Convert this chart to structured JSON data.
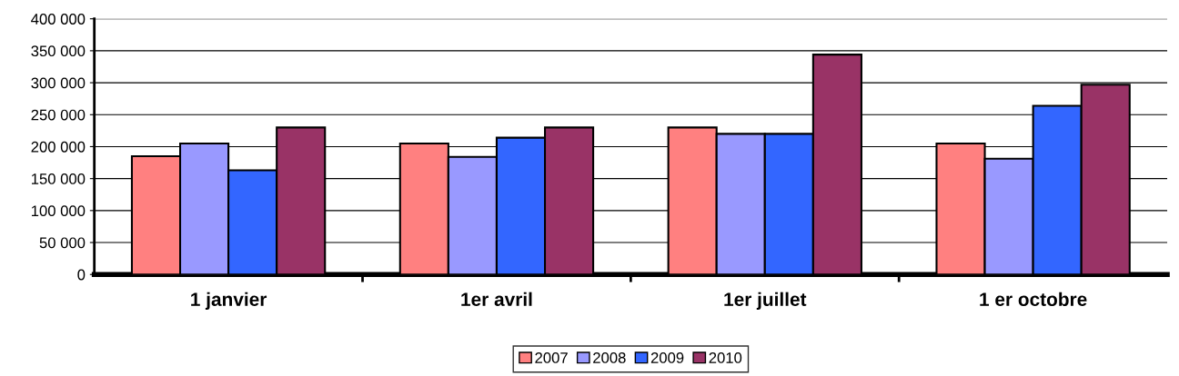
{
  "chart_data": {
    "type": "bar",
    "categories": [
      "1 janvier",
      "1er avril",
      "1er juillet",
      "1 er octobre"
    ],
    "series": [
      {
        "name": "2007",
        "color": "#ff8080",
        "values": [
          185000,
          205000,
          230000,
          205000
        ]
      },
      {
        "name": "2008",
        "color": "#9999ff",
        "values": [
          205000,
          184000,
          220000,
          181000
        ]
      },
      {
        "name": "2009",
        "color": "#3366ff",
        "values": [
          163000,
          214000,
          220000,
          264000
        ]
      },
      {
        "name": "2010",
        "color": "#993366",
        "values": [
          230000,
          230000,
          344000,
          297000
        ]
      }
    ],
    "ylim": [
      0,
      400000
    ],
    "yticks": [
      {
        "value": 0,
        "label": "0"
      },
      {
        "value": 50000,
        "label": "50 000"
      },
      {
        "value": 100000,
        "label": "100 000"
      },
      {
        "value": 150000,
        "label": "150 000"
      },
      {
        "value": 200000,
        "label": "200 000"
      },
      {
        "value": 250000,
        "label": "250 000"
      },
      {
        "value": 300000,
        "label": "300 000"
      },
      {
        "value": 350000,
        "label": "350 000"
      },
      {
        "value": 400000,
        "label": "400 000"
      }
    ],
    "grid": "y",
    "legend": "bottom"
  }
}
